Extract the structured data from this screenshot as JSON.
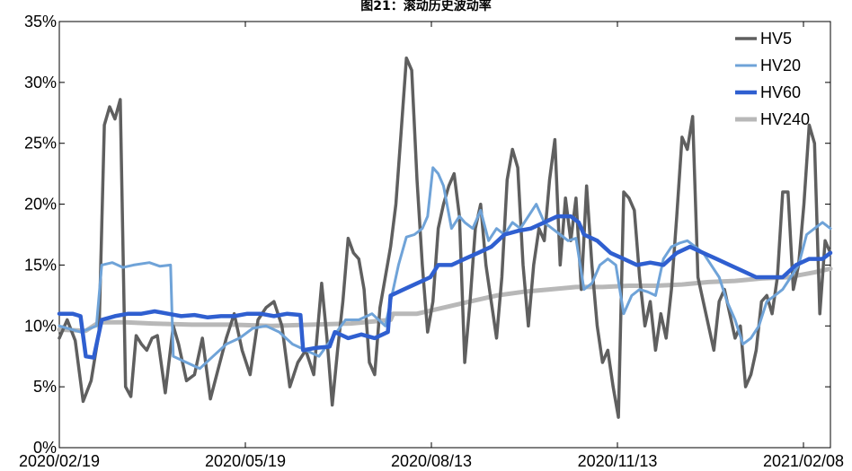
{
  "chart_data": {
    "type": "line",
    "title": "图21：滚动历史波动率",
    "xlabel": "",
    "ylabel": "",
    "ylim": [
      0,
      35
    ],
    "x_tick_labels": [
      "2020/02/19",
      "2020/05/19",
      "2020/08/13",
      "2020/11/13",
      "2021/02/08"
    ],
    "y_tick_labels": [
      "0%",
      "5%",
      "10%",
      "15%",
      "20%",
      "25%",
      "30%",
      "35%"
    ],
    "grid": false,
    "legend": "top-right",
    "series": [
      {
        "name": "HV5",
        "color": "#5f5f5f",
        "points": [
          [
            0,
            9.0
          ],
          [
            3,
            10.5
          ],
          [
            6,
            8.8
          ],
          [
            9,
            3.8
          ],
          [
            12,
            5.5
          ],
          [
            15,
            9.5
          ],
          [
            17,
            26.5
          ],
          [
            19,
            28.0
          ],
          [
            21,
            27.0
          ],
          [
            23,
            28.6
          ],
          [
            25,
            5.0
          ],
          [
            27,
            4.2
          ],
          [
            29,
            9.2
          ],
          [
            31,
            8.5
          ],
          [
            33,
            8.0
          ],
          [
            35,
            9.0
          ],
          [
            37,
            9.2
          ],
          [
            40,
            4.5
          ],
          [
            43,
            10.0
          ],
          [
            45,
            8.5
          ],
          [
            48,
            5.5
          ],
          [
            51,
            6.0
          ],
          [
            54,
            9.0
          ],
          [
            57,
            4.0
          ],
          [
            60,
            6.5
          ],
          [
            63,
            9.0
          ],
          [
            66,
            11.0
          ],
          [
            69,
            8.0
          ],
          [
            72,
            6.0
          ],
          [
            75,
            10.5
          ],
          [
            78,
            11.5
          ],
          [
            81,
            12.0
          ],
          [
            84,
            10.0
          ],
          [
            87,
            5.0
          ],
          [
            90,
            7.0
          ],
          [
            93,
            8.0
          ],
          [
            96,
            6.0
          ],
          [
            99,
            13.5
          ],
          [
            101,
            9.0
          ],
          [
            103,
            3.5
          ],
          [
            105,
            8.0
          ],
          [
            107,
            12.0
          ],
          [
            109,
            17.2
          ],
          [
            111,
            16.0
          ],
          [
            113,
            15.5
          ],
          [
            115,
            13.0
          ],
          [
            117,
            7.0
          ],
          [
            119,
            6.0
          ],
          [
            121,
            11.5
          ],
          [
            123,
            14.0
          ],
          [
            125,
            16.5
          ],
          [
            127,
            20.0
          ],
          [
            129,
            26.0
          ],
          [
            131,
            32.0
          ],
          [
            133,
            31.0
          ],
          [
            135,
            22.0
          ],
          [
            137,
            15.0
          ],
          [
            139,
            9.5
          ],
          [
            141,
            12.0
          ],
          [
            143,
            18.0
          ],
          [
            145,
            20.0
          ],
          [
            147,
            21.5
          ],
          [
            149,
            22.5
          ],
          [
            151,
            19.0
          ],
          [
            153,
            7.0
          ],
          [
            155,
            12.0
          ],
          [
            157,
            18.0
          ],
          [
            159,
            20.0
          ],
          [
            161,
            15.0
          ],
          [
            163,
            12.0
          ],
          [
            165,
            9.0
          ],
          [
            167,
            14.0
          ],
          [
            169,
            22.0
          ],
          [
            171,
            24.5
          ],
          [
            173,
            23.0
          ],
          [
            175,
            15.0
          ],
          [
            177,
            10.0
          ],
          [
            179,
            15.0
          ],
          [
            181,
            18.0
          ],
          [
            183,
            17.0
          ],
          [
            185,
            22.0
          ],
          [
            187,
            25.3
          ],
          [
            189,
            15.0
          ],
          [
            191,
            20.5
          ],
          [
            193,
            17.0
          ],
          [
            195,
            20.5
          ],
          [
            197,
            13.0
          ],
          [
            199,
            21.5
          ],
          [
            201,
            15.0
          ],
          [
            203,
            10.0
          ],
          [
            205,
            7.0
          ],
          [
            207,
            8.0
          ],
          [
            209,
            5.0
          ],
          [
            211,
            2.5
          ],
          [
            213,
            21.0
          ],
          [
            215,
            20.5
          ],
          [
            217,
            19.5
          ],
          [
            219,
            14.0
          ],
          [
            221,
            10.0
          ],
          [
            223,
            12.0
          ],
          [
            225,
            8.0
          ],
          [
            227,
            11.0
          ],
          [
            229,
            9.0
          ],
          [
            231,
            13.0
          ],
          [
            233,
            19.0
          ],
          [
            235,
            25.5
          ],
          [
            237,
            24.5
          ],
          [
            239,
            27.2
          ],
          [
            241,
            14.0
          ],
          [
            243,
            12.0
          ],
          [
            245,
            10.0
          ],
          [
            247,
            8.0
          ],
          [
            249,
            12.0
          ],
          [
            251,
            13.0
          ],
          [
            253,
            11.0
          ],
          [
            255,
            9.0
          ],
          [
            257,
            10.0
          ],
          [
            259,
            5.0
          ],
          [
            261,
            6.0
          ],
          [
            263,
            8.0
          ],
          [
            265,
            12.0
          ],
          [
            267,
            12.5
          ],
          [
            269,
            11.0
          ],
          [
            271,
            14.0
          ],
          [
            273,
            21.0
          ],
          [
            275,
            21.0
          ],
          [
            277,
            13.0
          ],
          [
            279,
            15.0
          ],
          [
            281,
            20.0
          ],
          [
            283,
            26.5
          ],
          [
            285,
            25.0
          ],
          [
            287,
            11.0
          ],
          [
            289,
            17.0
          ],
          [
            291,
            16.0
          ]
        ]
      },
      {
        "name": "HV20",
        "color": "#6fa3d8",
        "points": [
          [
            0,
            10.0
          ],
          [
            8,
            9.5
          ],
          [
            14,
            10.0
          ],
          [
            16,
            15.0
          ],
          [
            20,
            15.2
          ],
          [
            24,
            14.8
          ],
          [
            28,
            15.0
          ],
          [
            34,
            15.2
          ],
          [
            38,
            14.9
          ],
          [
            42,
            15.0
          ],
          [
            43,
            7.5
          ],
          [
            48,
            7.0
          ],
          [
            53,
            6.5
          ],
          [
            58,
            7.5
          ],
          [
            63,
            8.5
          ],
          [
            68,
            9.0
          ],
          [
            73,
            9.8
          ],
          [
            78,
            10.0
          ],
          [
            83,
            9.5
          ],
          [
            88,
            8.5
          ],
          [
            93,
            8.0
          ],
          [
            98,
            7.5
          ],
          [
            103,
            9.0
          ],
          [
            108,
            10.5
          ],
          [
            113,
            10.5
          ],
          [
            118,
            11.0
          ],
          [
            123,
            10.0
          ],
          [
            128,
            15.0
          ],
          [
            131,
            17.3
          ],
          [
            134,
            17.5
          ],
          [
            137,
            18.0
          ],
          [
            139,
            19.0
          ],
          [
            141,
            23.0
          ],
          [
            143,
            22.5
          ],
          [
            145,
            21.5
          ],
          [
            148,
            18.0
          ],
          [
            151,
            19.0
          ],
          [
            153,
            18.5
          ],
          [
            156,
            18.0
          ],
          [
            159,
            19.5
          ],
          [
            162,
            17.0
          ],
          [
            165,
            18.0
          ],
          [
            168,
            17.5
          ],
          [
            171,
            18.5
          ],
          [
            174,
            18.0
          ],
          [
            177,
            19.0
          ],
          [
            180,
            20.0
          ],
          [
            183,
            18.5
          ],
          [
            186,
            18.0
          ],
          [
            189,
            17.5
          ],
          [
            192,
            17.0
          ],
          [
            195,
            17.2
          ],
          [
            198,
            13.0
          ],
          [
            201,
            13.5
          ],
          [
            204,
            15.0
          ],
          [
            207,
            15.5
          ],
          [
            210,
            15.0
          ],
          [
            213,
            11.0
          ],
          [
            216,
            12.5
          ],
          [
            219,
            13.0
          ],
          [
            222,
            12.8
          ],
          [
            225,
            12.5
          ],
          [
            228,
            15.5
          ],
          [
            231,
            16.5
          ],
          [
            234,
            16.8
          ],
          [
            237,
            17.0
          ],
          [
            240,
            16.5
          ],
          [
            243,
            16.0
          ],
          [
            246,
            15.0
          ],
          [
            249,
            14.0
          ],
          [
            252,
            12.0
          ],
          [
            255,
            10.5
          ],
          [
            258,
            8.5
          ],
          [
            261,
            9.0
          ],
          [
            264,
            10.0
          ],
          [
            267,
            12.0
          ],
          [
            270,
            12.5
          ],
          [
            273,
            13.0
          ],
          [
            276,
            14.0
          ],
          [
            279,
            15.0
          ],
          [
            282,
            17.5
          ],
          [
            285,
            18.0
          ],
          [
            288,
            18.5
          ],
          [
            291,
            18.0
          ]
        ]
      },
      {
        "name": "HV60",
        "color": "#2f5fd0",
        "points": [
          [
            0,
            11.0
          ],
          [
            5,
            11.0
          ],
          [
            8,
            10.8
          ],
          [
            10,
            7.5
          ],
          [
            13,
            7.4
          ],
          [
            16,
            10.5
          ],
          [
            21,
            10.8
          ],
          [
            26,
            11.0
          ],
          [
            31,
            11.0
          ],
          [
            36,
            11.2
          ],
          [
            41,
            11.0
          ],
          [
            46,
            10.8
          ],
          [
            51,
            10.9
          ],
          [
            56,
            10.7
          ],
          [
            61,
            10.8
          ],
          [
            66,
            10.8
          ],
          [
            71,
            11.0
          ],
          [
            76,
            11.0
          ],
          [
            81,
            10.8
          ],
          [
            86,
            11.0
          ],
          [
            91,
            10.9
          ],
          [
            92,
            8.0
          ],
          [
            97,
            8.2
          ],
          [
            102,
            8.3
          ],
          [
            104,
            9.5
          ],
          [
            109,
            9.0
          ],
          [
            114,
            9.3
          ],
          [
            119,
            9.0
          ],
          [
            124,
            9.5
          ],
          [
            125,
            12.5
          ],
          [
            130,
            13.0
          ],
          [
            135,
            13.5
          ],
          [
            140,
            14.0
          ],
          [
            143,
            15.0
          ],
          [
            148,
            15.0
          ],
          [
            153,
            15.5
          ],
          [
            158,
            16.0
          ],
          [
            163,
            16.5
          ],
          [
            168,
            17.5
          ],
          [
            173,
            17.8
          ],
          [
            178,
            18.0
          ],
          [
            183,
            18.5
          ],
          [
            188,
            19.0
          ],
          [
            193,
            19.0
          ],
          [
            196,
            18.5
          ],
          [
            198,
            17.5
          ],
          [
            203,
            17.0
          ],
          [
            208,
            16.0
          ],
          [
            213,
            15.5
          ],
          [
            218,
            15.0
          ],
          [
            223,
            15.2
          ],
          [
            228,
            15.0
          ],
          [
            233,
            16.0
          ],
          [
            238,
            16.5
          ],
          [
            243,
            16.0
          ],
          [
            248,
            15.5
          ],
          [
            253,
            15.0
          ],
          [
            258,
            14.5
          ],
          [
            263,
            14.0
          ],
          [
            268,
            14.0
          ],
          [
            273,
            14.0
          ],
          [
            278,
            15.0
          ],
          [
            283,
            15.5
          ],
          [
            288,
            15.5
          ],
          [
            291,
            16.0
          ]
        ]
      },
      {
        "name": "HV240",
        "color": "#b8b8b8",
        "points": [
          [
            0,
            9.7
          ],
          [
            10,
            9.6
          ],
          [
            15,
            10.3
          ],
          [
            25,
            10.3
          ],
          [
            35,
            10.2
          ],
          [
            50,
            10.1
          ],
          [
            65,
            10.1
          ],
          [
            80,
            10.0
          ],
          [
            95,
            10.1
          ],
          [
            110,
            10.2
          ],
          [
            120,
            10.4
          ],
          [
            125,
            10.5
          ],
          [
            126,
            11.0
          ],
          [
            135,
            11.0
          ],
          [
            145,
            11.5
          ],
          [
            155,
            12.0
          ],
          [
            165,
            12.5
          ],
          [
            175,
            12.8
          ],
          [
            185,
            13.0
          ],
          [
            195,
            13.2
          ],
          [
            205,
            13.2
          ],
          [
            215,
            13.3
          ],
          [
            225,
            13.3
          ],
          [
            235,
            13.4
          ],
          [
            245,
            13.6
          ],
          [
            255,
            13.7
          ],
          [
            265,
            13.9
          ],
          [
            275,
            14.0
          ],
          [
            285,
            14.4
          ],
          [
            291,
            14.7
          ]
        ]
      }
    ],
    "x_range": [
      0,
      291
    ]
  }
}
